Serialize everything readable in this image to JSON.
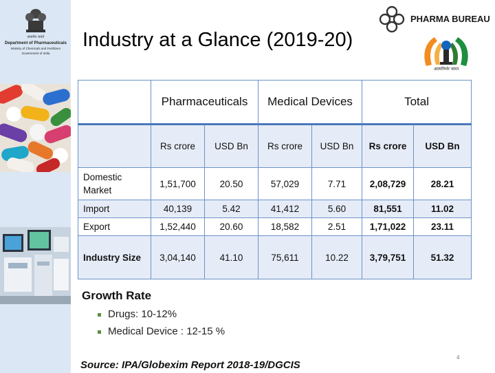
{
  "header": {
    "dept_line1": "Department of Pharmaceuticals",
    "dept_line2": "Ministry of Chemicals and Fertilizers",
    "dept_line3": "Government of India",
    "title": "Industry at a Glance (2019-20)",
    "brand": "PHARMA BUREAU",
    "emblem_caption": "आत्मनिर्भर भारत"
  },
  "table": {
    "group_headers": [
      "Pharmaceuticals",
      "Medical Devices",
      "Total"
    ],
    "unit_headers": [
      "Rs crore",
      "USD Bn",
      "Rs crore",
      "USD Bn",
      "Rs crore",
      "USD Bn"
    ],
    "rows": [
      {
        "label": "Domestic Market",
        "values": [
          "1,51,700",
          "20.50",
          "57,029",
          "7.71",
          "2,08,729",
          "28.21"
        ]
      },
      {
        "label": "Import",
        "values": [
          "40,139",
          "5.42",
          "41,412",
          "5.60",
          "81,551",
          "11.02"
        ]
      },
      {
        "label": "Export",
        "values": [
          "1,52,440",
          "20.60",
          "18,582",
          "2.51",
          "1,71,022",
          "23.11"
        ]
      },
      {
        "label": "Industry Size",
        "values": [
          "3,04,140",
          "41.10",
          "75,611",
          "10.22",
          "3,79,751",
          "51.32"
        ]
      }
    ]
  },
  "growth": {
    "title": "Growth Rate",
    "items": [
      "Drugs: 10-12%",
      "Medical Device : 12-15 %"
    ]
  },
  "footer": {
    "source": "Source: IPA/Globexim Report 2018-19/DGCIS",
    "page_number": "4"
  },
  "colors": {
    "sidebar": "#dbe7f4",
    "table_border": "#6a92c8",
    "table_band": "#e6ecf7",
    "header_rule": "#4a78bb",
    "bullet": "#5f8f3e"
  }
}
